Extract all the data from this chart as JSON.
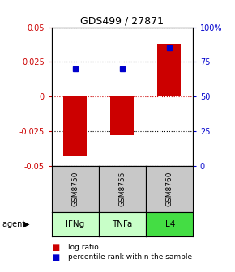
{
  "title": "GDS499 / 27871",
  "samples": [
    "GSM8750",
    "GSM8755",
    "GSM8760"
  ],
  "agents": [
    "IFNg",
    "TNFa",
    "IL4"
  ],
  "log_ratios": [
    -0.043,
    -0.028,
    0.038
  ],
  "percentile_ranks_pct": [
    70,
    70,
    85
  ],
  "ylim_left": [
    -0.05,
    0.05
  ],
  "ylim_right": [
    0,
    100
  ],
  "yticks_left": [
    -0.05,
    -0.025,
    0,
    0.025,
    0.05
  ],
  "yticks_right": [
    0,
    25,
    50,
    75,
    100
  ],
  "left_color": "#cc0000",
  "right_color": "#0000cc",
  "bar_color": "#cc0000",
  "dot_color": "#0000cc",
  "sample_box_color": "#c8c8c8",
  "agent_box_colors": [
    "#c8ffc8",
    "#c8ffc8",
    "#44dd44"
  ],
  "bar_width": 0.5,
  "figsize": [
    2.9,
    3.36
  ],
  "dpi": 100
}
